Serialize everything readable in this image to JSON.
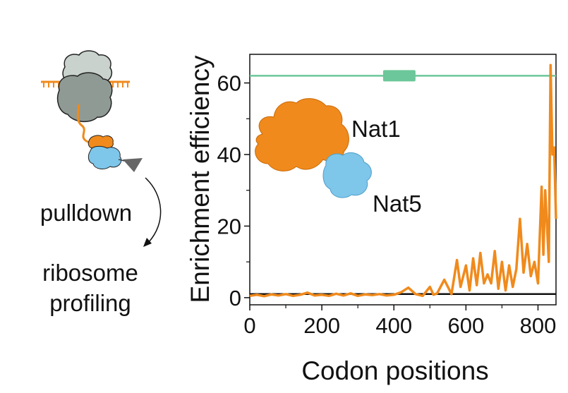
{
  "schematic": {
    "step1_label": "pulldown",
    "step2_label_line1": "ribosome",
    "step2_label_line2": "profiling"
  },
  "structure": {
    "protein1_label": "Nat1",
    "protein2_label": "Nat5",
    "protein1_color": "#f08a1c",
    "protein2_color": "#7ec6ea"
  },
  "colors": {
    "ribosome_small": "#c9d2cd",
    "ribosome_large": "#8f9a94",
    "mrna": "#f08a1c",
    "enrichment_line": "#f08a1c",
    "domain_line": "#6cc79a",
    "baseline": "#111111",
    "tag": "#666666"
  },
  "chart_data": {
    "type": "line",
    "title": "",
    "xlabel": "Codon positions",
    "ylabel": "Enrichment efficiency",
    "xlim": [
      0,
      850
    ],
    "ylim": [
      -2,
      68
    ],
    "xticks": [
      0,
      200,
      400,
      600,
      800
    ],
    "yticks": [
      0,
      20,
      40,
      60
    ],
    "grid": false,
    "baseline_y": 1,
    "domain": {
      "y": 62,
      "start": 370,
      "end": 460
    },
    "series": [
      {
        "x": [
          0,
          20,
          40,
          60,
          80,
          100,
          120,
          140,
          160,
          180,
          200,
          220,
          240,
          260,
          280,
          300,
          320,
          340,
          360,
          380,
          400,
          420,
          440,
          460,
          480,
          500,
          510,
          520,
          540,
          560,
          575,
          585,
          600,
          610,
          620,
          630,
          640,
          650,
          660,
          670,
          680,
          690,
          700,
          710,
          720,
          730,
          740,
          750,
          760,
          770,
          780,
          790,
          800,
          810,
          815,
          820,
          830,
          835,
          840,
          845,
          850
        ],
        "y": [
          0.5,
          0.8,
          0.4,
          0.9,
          0.6,
          1.0,
          0.5,
          0.8,
          1.4,
          0.6,
          0.8,
          0.5,
          1.1,
          0.6,
          1.2,
          0.5,
          0.9,
          0.7,
          1.0,
          0.6,
          0.8,
          1.5,
          2.8,
          1.0,
          0.5,
          3.0,
          0.8,
          1.2,
          5.0,
          1.0,
          10.5,
          3.0,
          9.0,
          2.0,
          11.0,
          3.5,
          12.5,
          4.0,
          6.5,
          4.0,
          13.0,
          2.5,
          10.0,
          2.0,
          9.0,
          3.0,
          8.0,
          22.0,
          7.0,
          15.0,
          6.0,
          10.0,
          4.0,
          31.0,
          12.0,
          30.0,
          10.0,
          65.0,
          40.0,
          42.0,
          22.0
        ]
      }
    ]
  }
}
